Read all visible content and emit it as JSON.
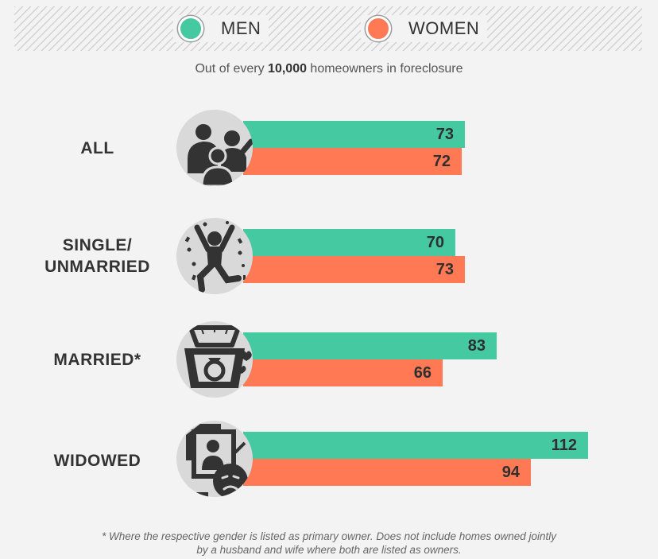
{
  "legend": {
    "men_label": "MEN",
    "women_label": "WOMEN"
  },
  "subtitle": {
    "prefix": "Out of every ",
    "highlight": "10,000",
    "suffix": " homeowners in foreclosure"
  },
  "colors": {
    "men": "#44c9a1",
    "women": "#ff7a54"
  },
  "chart_data": {
    "type": "bar",
    "orientation": "horizontal",
    "categories": [
      "ALL",
      "SINGLE/ UNMARRIED",
      "MARRIED*",
      "WIDOWED"
    ],
    "category_lines": [
      [
        "ALL"
      ],
      [
        "SINGLE/",
        "UNMARRIED"
      ],
      [
        "MARRIED*"
      ],
      [
        "WIDOWED"
      ]
    ],
    "icons": [
      "family-icon",
      "celebrating-person-icon",
      "ring-box-icon",
      "widowed-portrait-icon"
    ],
    "series": [
      {
        "name": "MEN",
        "values": [
          73,
          70,
          83,
          112
        ]
      },
      {
        "name": "WOMEN",
        "values": [
          72,
          73,
          66,
          94
        ]
      }
    ],
    "data_labels": true,
    "legend_position": "top"
  },
  "footnote": {
    "line1": "* Where the respective gender is listed as primary owner. Does not include homes owned jointly",
    "line2": "by a husband and wife where both are listed as owners."
  }
}
